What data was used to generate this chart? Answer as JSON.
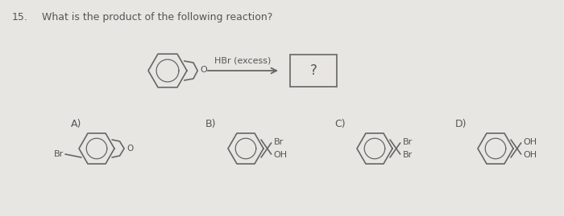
{
  "title_num": "15.",
  "question": "What is the product of the following reaction?",
  "reagent": "HBr (excess)",
  "question_mark": "?",
  "bg_color": "#e8e6e2",
  "line_color": "#666666",
  "text_color": "#555555",
  "options": [
    "A)",
    "B)",
    "C)",
    "D)"
  ],
  "fig_width": 7.0,
  "fig_height": 2.69,
  "dpi": 100
}
